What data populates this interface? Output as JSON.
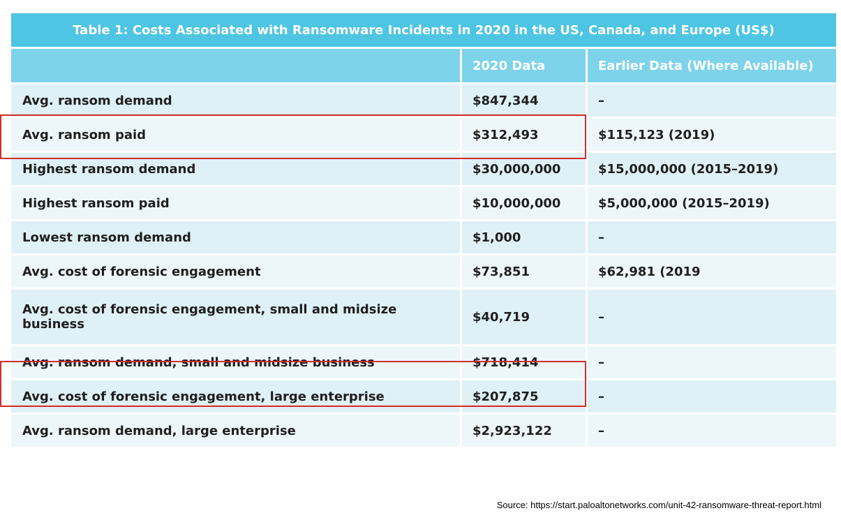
{
  "table": {
    "title": "Table 1: Costs Associated with Ransomware Incidents in 2020 in the US, Canada, and Europe (US$)",
    "header": {
      "col1": "",
      "col2": "2020 Data",
      "col3": "Earlier Data (Where Available)"
    },
    "rows": [
      {
        "label": "Avg. ransom demand",
        "data2020": "$847,344",
        "earlier": "–"
      },
      {
        "label": "Avg. ransom paid",
        "data2020": "$312,493",
        "earlier": "$115,123 (2019)"
      },
      {
        "label": "Highest ransom demand",
        "data2020": "$30,000,000",
        "earlier": "$15,000,000 (2015–2019)"
      },
      {
        "label": "Highest ransom paid",
        "data2020": "$10,000,000",
        "earlier": "$5,000,000 (2015–2019)"
      },
      {
        "label": "Lowest ransom demand",
        "data2020": "$1,000",
        "earlier": "–"
      },
      {
        "label": "Avg. cost of forensic engagement",
        "data2020": "$73,851",
        "earlier": "$62,981 (2019"
      },
      {
        "label": "Avg. cost of forensic engagement, small and midsize business",
        "data2020": "$40,719",
        "earlier": "–"
      },
      {
        "label": "Avg. ransom demand, small and midsize business",
        "data2020": "$718,414",
        "earlier": "–"
      },
      {
        "label": "Avg. cost of forensic engagement, large enterprise",
        "data2020": "$207,875",
        "earlier": "–"
      },
      {
        "label": "Avg. ransom demand, large enterprise",
        "data2020": "$2,923,122",
        "earlier": "–"
      }
    ]
  },
  "source": "Source: https://start.paloaltonetworks.com/unit-42-ransomware-threat-report.html",
  "colors": {
    "title_bg": "#4dc5e3",
    "header_bg": "#7dd3ea",
    "row_odd": "#dff1f7",
    "row_even": "#edf7fa",
    "highlight": "#d42a2a"
  }
}
